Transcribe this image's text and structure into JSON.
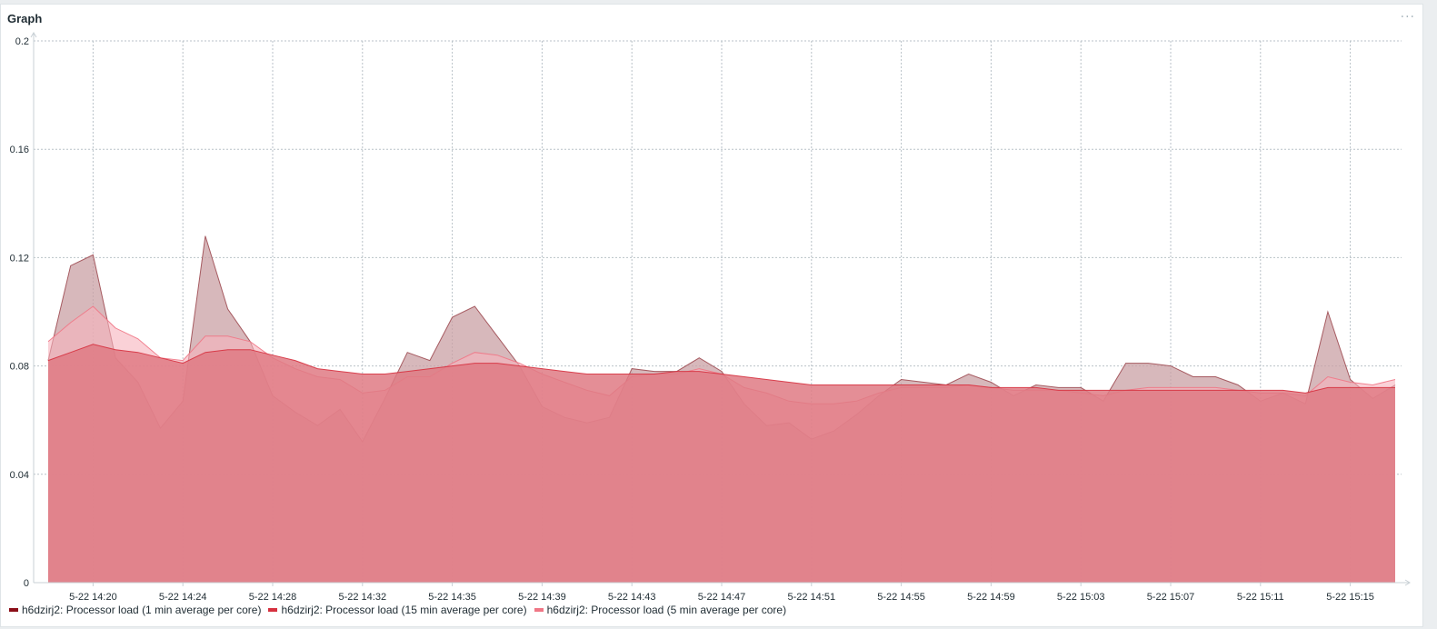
{
  "widget": {
    "title": "Graph",
    "menu_label": "···"
  },
  "colors": {
    "series1_line": "#9e4d53",
    "series1_fill": "#c9a0a4",
    "series2_line": "#d6313f",
    "series2_fill": "#df7a84",
    "series3_line": "#f07786",
    "series3_fill": "#f7b3bc",
    "grid": "#b9c2c8",
    "axis": "#c8d0d5",
    "legend_swatch1": "#8b0e18",
    "legend_swatch2": "#d6313f",
    "legend_swatch3": "#f07786"
  },
  "chart_data": {
    "type": "area",
    "title": "",
    "xlabel": "",
    "ylabel": "",
    "ylim": [
      0,
      0.2
    ],
    "yticks": [
      "0",
      "0.04",
      "0.08",
      "0.12",
      "0.16",
      "0.2"
    ],
    "grid": true,
    "legend_position": "bottom",
    "xticks": [
      {
        "label": "5-22 14:20",
        "x": 2
      },
      {
        "label": "5-22 14:24",
        "x": 6
      },
      {
        "label": "5-22 14:28",
        "x": 10
      },
      {
        "label": "5-22 14:32",
        "x": 14
      },
      {
        "label": "5-22 14:35",
        "x": 18
      },
      {
        "label": "5-22 14:39",
        "x": 22
      },
      {
        "label": "5-22 14:43",
        "x": 26
      },
      {
        "label": "5-22 14:47",
        "x": 30
      },
      {
        "label": "5-22 14:51",
        "x": 34
      },
      {
        "label": "5-22 14:55",
        "x": 38
      },
      {
        "label": "5-22 14:59",
        "x": 42
      },
      {
        "label": "5-22 15:03",
        "x": 46
      },
      {
        "label": "5-22 15:07",
        "x": 50
      },
      {
        "label": "5-22 15:11",
        "x": 54
      },
      {
        "label": "5-22 15:15",
        "x": 58
      }
    ],
    "series": [
      {
        "name": "h6dzirj2: Processor load (1 min average per core)",
        "x": [
          0,
          1,
          2,
          3,
          4,
          5,
          6,
          7,
          8,
          9,
          10,
          11,
          12,
          13,
          14,
          15,
          16,
          17,
          18,
          19,
          20,
          21,
          22,
          23,
          24,
          25,
          26,
          27,
          28,
          29,
          30,
          31,
          32,
          33,
          34,
          35,
          36,
          37,
          38,
          39,
          40,
          41,
          42,
          43,
          44,
          45,
          46,
          47,
          48,
          49,
          50,
          51,
          52,
          53,
          54,
          55,
          56,
          57,
          58,
          59,
          60
        ],
        "values": [
          0.082,
          0.117,
          0.121,
          0.083,
          0.074,
          0.057,
          0.067,
          0.128,
          0.101,
          0.089,
          0.069,
          0.063,
          0.058,
          0.064,
          0.052,
          0.068,
          0.085,
          0.082,
          0.098,
          0.102,
          0.091,
          0.08,
          0.065,
          0.061,
          0.059,
          0.061,
          0.079,
          0.078,
          0.078,
          0.083,
          0.078,
          0.066,
          0.058,
          0.059,
          0.053,
          0.056,
          0.062,
          0.069,
          0.075,
          0.074,
          0.073,
          0.077,
          0.074,
          0.069,
          0.073,
          0.072,
          0.072,
          0.067,
          0.081,
          0.081,
          0.08,
          0.076,
          0.076,
          0.073,
          0.067,
          0.07,
          0.066,
          0.1,
          0.075,
          0.068,
          0.073
        ]
      },
      {
        "name": "h6dzirj2: Processor load (15 min average per core)",
        "x": [
          0,
          1,
          2,
          3,
          4,
          5,
          6,
          7,
          8,
          9,
          10,
          11,
          12,
          13,
          14,
          15,
          16,
          17,
          18,
          19,
          20,
          21,
          22,
          23,
          24,
          25,
          26,
          27,
          28,
          29,
          30,
          31,
          32,
          33,
          34,
          35,
          36,
          37,
          38,
          39,
          40,
          41,
          42,
          43,
          44,
          45,
          46,
          47,
          48,
          49,
          50,
          51,
          52,
          53,
          54,
          55,
          56,
          57,
          58,
          59,
          60
        ],
        "values": [
          0.082,
          0.085,
          0.088,
          0.086,
          0.085,
          0.083,
          0.081,
          0.085,
          0.086,
          0.086,
          0.084,
          0.082,
          0.079,
          0.078,
          0.077,
          0.077,
          0.078,
          0.079,
          0.08,
          0.081,
          0.081,
          0.08,
          0.079,
          0.078,
          0.077,
          0.077,
          0.077,
          0.077,
          0.078,
          0.078,
          0.077,
          0.076,
          0.075,
          0.074,
          0.073,
          0.073,
          0.073,
          0.073,
          0.073,
          0.073,
          0.073,
          0.073,
          0.072,
          0.072,
          0.072,
          0.071,
          0.071,
          0.071,
          0.071,
          0.071,
          0.071,
          0.071,
          0.071,
          0.071,
          0.071,
          0.071,
          0.07,
          0.072,
          0.072,
          0.072,
          0.072
        ]
      },
      {
        "name": "h6dzirj2: Processor load (5 min average per core)",
        "x": [
          0,
          1,
          2,
          3,
          4,
          5,
          6,
          7,
          8,
          9,
          10,
          11,
          12,
          13,
          14,
          15,
          16,
          17,
          18,
          19,
          20,
          21,
          22,
          23,
          24,
          25,
          26,
          27,
          28,
          29,
          30,
          31,
          32,
          33,
          34,
          35,
          36,
          37,
          38,
          39,
          40,
          41,
          42,
          43,
          44,
          45,
          46,
          47,
          48,
          49,
          50,
          51,
          52,
          53,
          54,
          55,
          56,
          57,
          58,
          59,
          60
        ],
        "values": [
          0.089,
          0.096,
          0.102,
          0.094,
          0.09,
          0.083,
          0.082,
          0.091,
          0.091,
          0.089,
          0.083,
          0.079,
          0.076,
          0.075,
          0.07,
          0.071,
          0.076,
          0.076,
          0.081,
          0.085,
          0.084,
          0.081,
          0.077,
          0.074,
          0.071,
          0.069,
          0.076,
          0.077,
          0.077,
          0.079,
          0.077,
          0.072,
          0.07,
          0.067,
          0.066,
          0.066,
          0.067,
          0.07,
          0.072,
          0.072,
          0.072,
          0.073,
          0.072,
          0.071,
          0.071,
          0.071,
          0.07,
          0.069,
          0.071,
          0.072,
          0.072,
          0.072,
          0.072,
          0.071,
          0.07,
          0.07,
          0.069,
          0.076,
          0.074,
          0.073,
          0.075
        ]
      }
    ]
  }
}
